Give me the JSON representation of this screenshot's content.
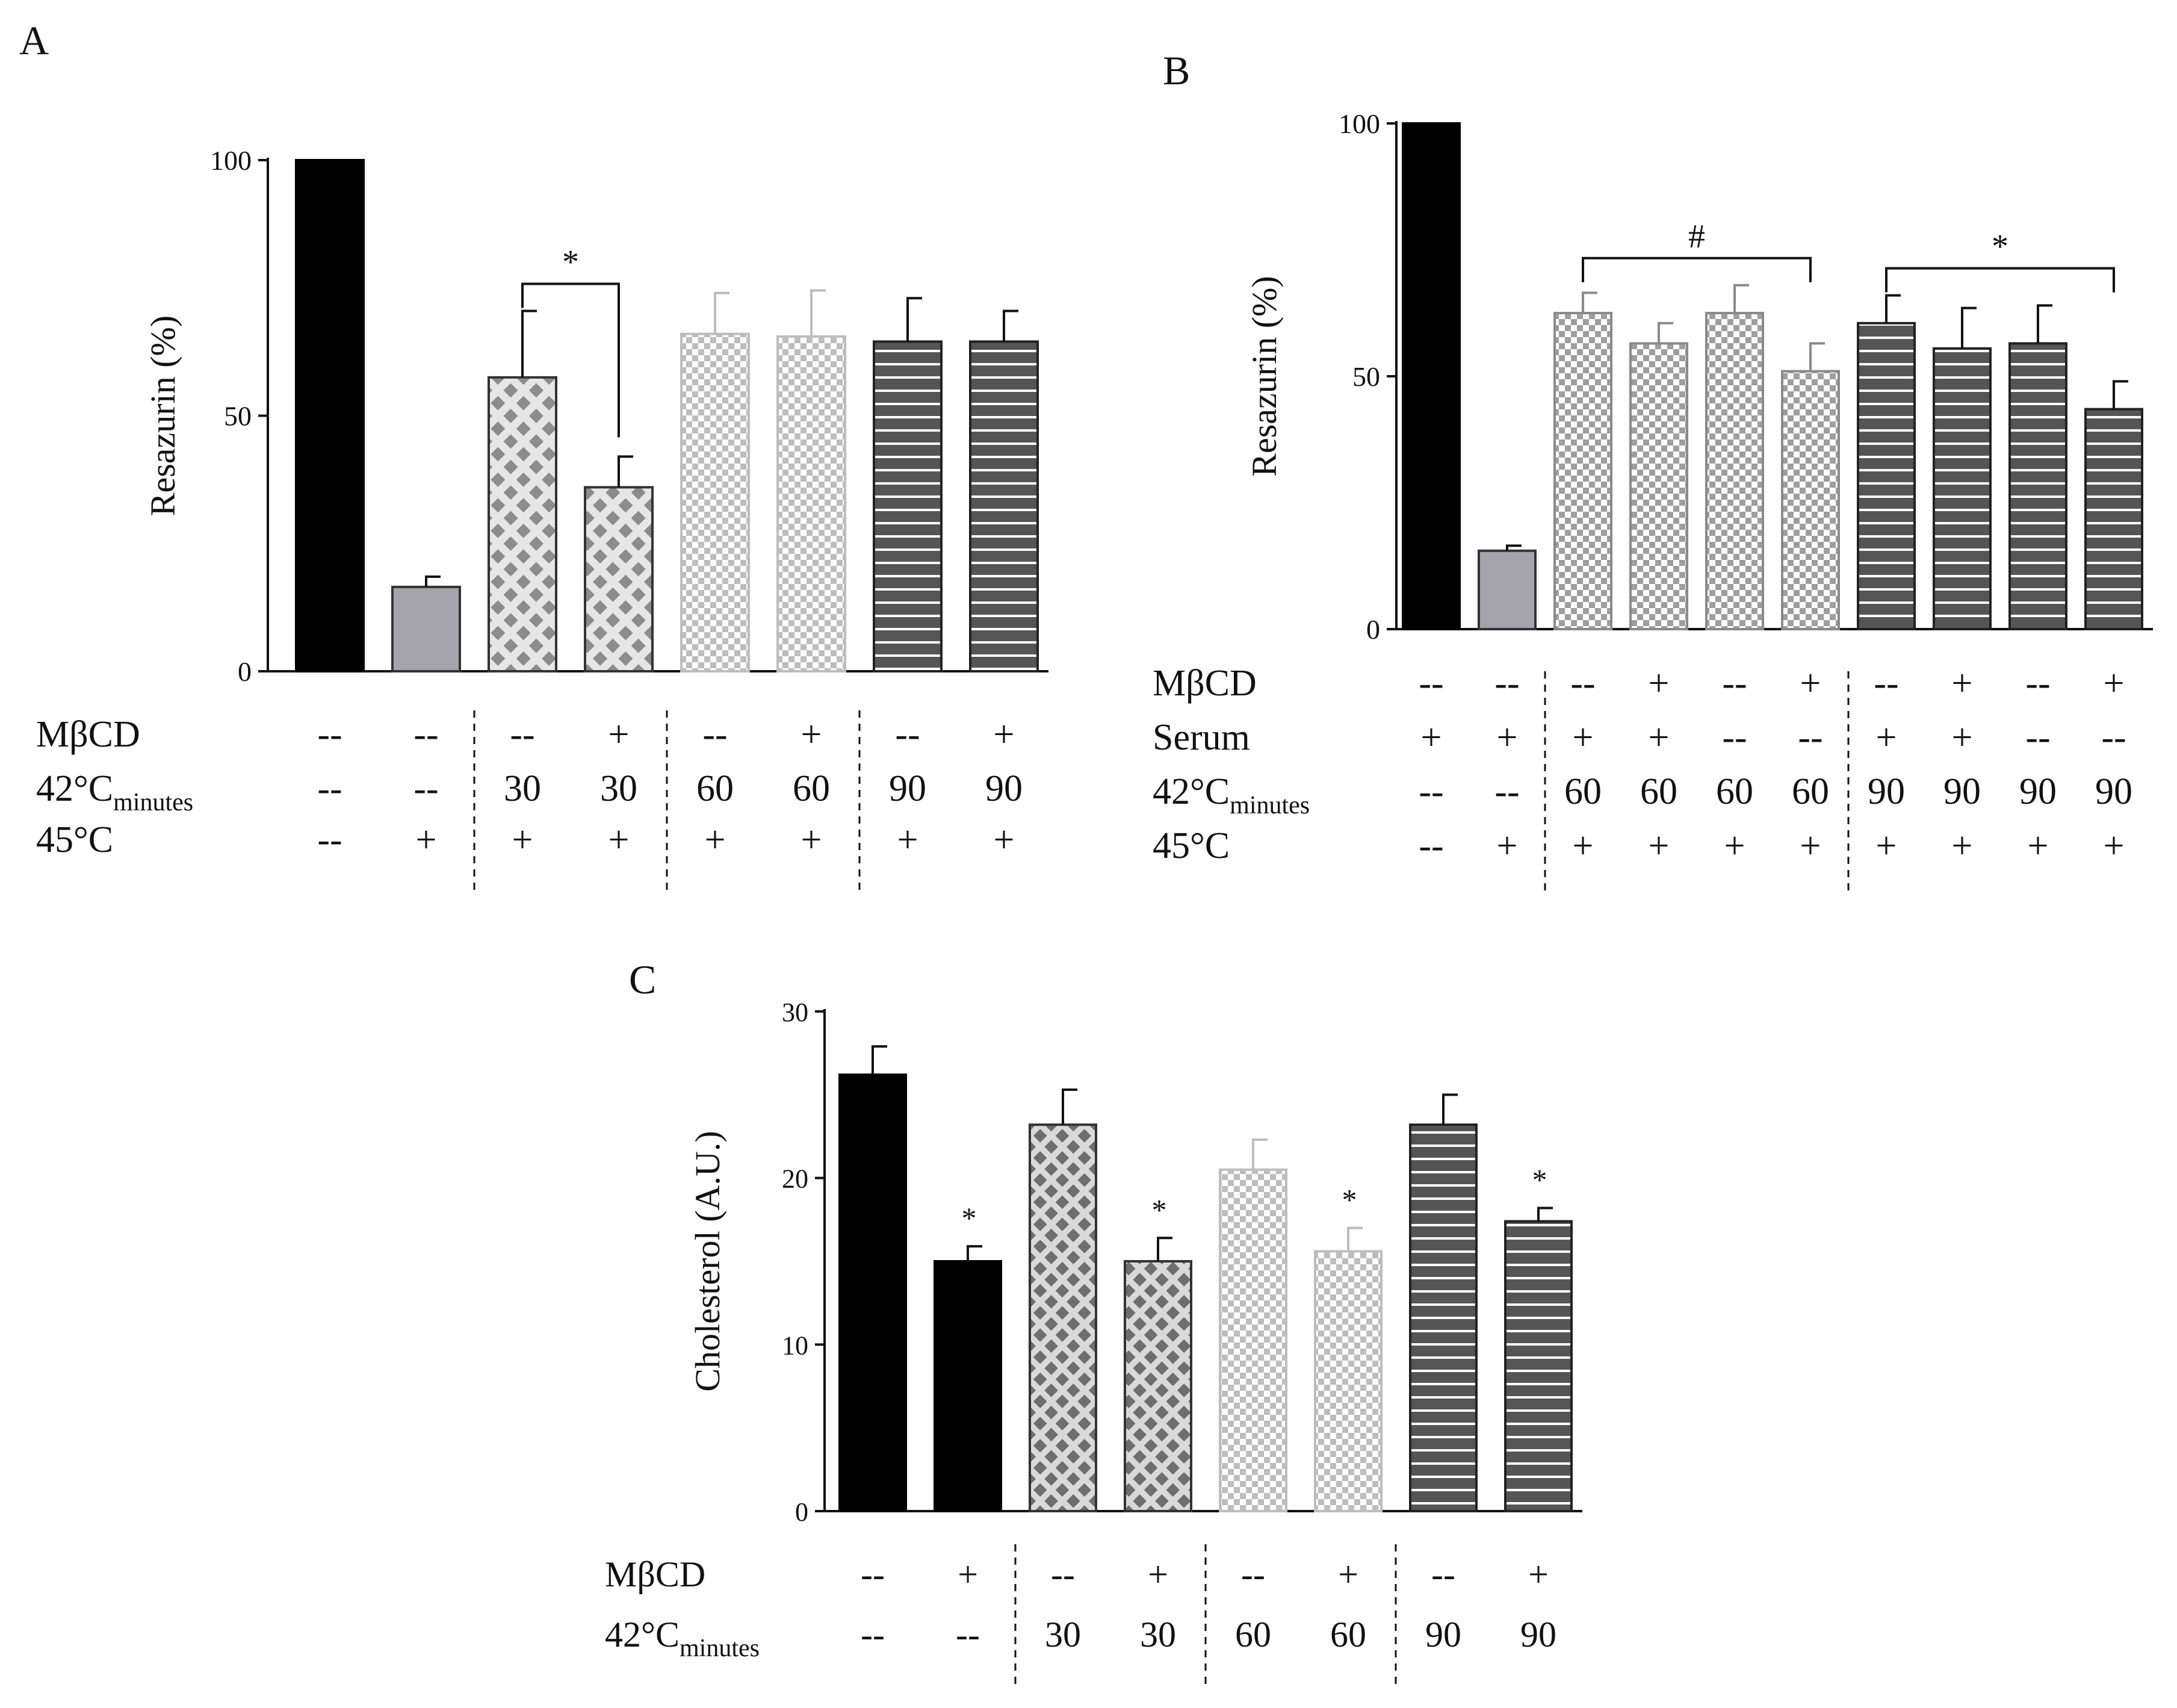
{
  "colors": {
    "black": "#000000",
    "gray_solid": "#a6a4ab",
    "crosshatch_fg": "#8c8c8c",
    "crosshatch_bg": "#e6e6e6",
    "check_light": "#bdbdbd",
    "check_mid": "#9e9e9e",
    "stripe_dark": "#555555",
    "stripe_line": "#ffffff"
  },
  "chart_data": [
    {
      "panel": "A",
      "type": "bar",
      "ylabel": "Resazurin (%)",
      "ylim": [
        0,
        100
      ],
      "yticks": [
        0,
        50,
        100
      ],
      "values": [
        100,
        16.5,
        57.5,
        36,
        66,
        65.5,
        64.5,
        64.5
      ],
      "errors": [
        0,
        2,
        13,
        6,
        8,
        9,
        8.5,
        6
      ],
      "patterns": [
        "black",
        "gray",
        "diamond",
        "diamond",
        "check-light",
        "check-light",
        "stripe-dark",
        "stripe-dark"
      ],
      "row_labels": [
        "MβCD",
        "42°C",
        "45°C"
      ],
      "row_label_subscripts": [
        "",
        "minutes",
        ""
      ],
      "rows": [
        [
          "--",
          "--",
          "--",
          "+",
          "--",
          "+",
          "--",
          "+"
        ],
        [
          "--",
          "--",
          "30",
          "30",
          "60",
          "60",
          "90",
          "90"
        ],
        [
          "--",
          "+",
          "+",
          "+",
          "+",
          "+",
          "+",
          "+"
        ]
      ],
      "group_separators_after": [
        1,
        3,
        5
      ],
      "brackets": [
        {
          "from": 2,
          "to": 3,
          "label": "*"
        }
      ],
      "bar_stars": []
    },
    {
      "panel": "B",
      "type": "bar",
      "ylabel": "Resazurin (%)",
      "ylim": [
        0,
        100
      ],
      "yticks": [
        0,
        50,
        100
      ],
      "values": [
        100,
        15.5,
        62.5,
        56.5,
        62.5,
        51,
        60.5,
        55.5,
        56.5,
        43.5
      ],
      "errors": [
        0,
        1,
        4,
        4,
        5.5,
        5.5,
        5.5,
        8,
        7.5,
        5.5
      ],
      "patterns": [
        "black",
        "gray",
        "check-mid",
        "check-mid",
        "check-mid",
        "check-mid",
        "stripe-dark",
        "stripe-dark",
        "stripe-dark",
        "stripe-dark"
      ],
      "row_labels": [
        "MβCD",
        "Serum",
        "42°C",
        "45°C"
      ],
      "row_label_subscripts": [
        "",
        "",
        "minutes",
        ""
      ],
      "rows": [
        [
          "--",
          "--",
          "--",
          "+",
          "--",
          "+",
          "--",
          "+",
          "--",
          "+"
        ],
        [
          "+",
          "+",
          "+",
          "+",
          "--",
          "--",
          "+",
          "+",
          "--",
          "--"
        ],
        [
          "--",
          "--",
          "60",
          "60",
          "60",
          "60",
          "90",
          "90",
          "90",
          "90"
        ],
        [
          "--",
          "+",
          "+",
          "+",
          "+",
          "+",
          "+",
          "+",
          "+",
          "+"
        ]
      ],
      "group_separators_after": [
        1,
        5
      ],
      "brackets": [
        {
          "from": 2,
          "to": 5,
          "label": "#"
        },
        {
          "from": 6,
          "to": 9,
          "label": "*"
        }
      ],
      "bar_stars": []
    },
    {
      "panel": "C",
      "type": "bar",
      "ylabel": "Cholesterol (A.U.)",
      "ylim": [
        0,
        30
      ],
      "yticks": [
        0,
        10,
        20,
        30
      ],
      "values": [
        26.2,
        15,
        23.2,
        15,
        20.5,
        15.6,
        23.2,
        17.4
      ],
      "errors": [
        1.7,
        0.9,
        2.1,
        1.4,
        1.8,
        1.4,
        1.8,
        0.8
      ],
      "patterns": [
        "black",
        "black",
        "diamond-dark",
        "diamond-dark",
        "check-light",
        "check-light",
        "stripe-dark",
        "stripe-dark"
      ],
      "row_labels": [
        "MβCD",
        "42°C"
      ],
      "row_label_subscripts": [
        "",
        "minutes"
      ],
      "rows": [
        [
          "--",
          "+",
          "--",
          "+",
          "--",
          "+",
          "--",
          "+"
        ],
        [
          "--",
          "--",
          "30",
          "30",
          "60",
          "60",
          "90",
          "90"
        ]
      ],
      "group_separators_after": [
        1,
        3,
        5
      ],
      "brackets": [],
      "bar_stars": [
        1,
        3,
        5,
        7
      ],
      "star_label": "*"
    }
  ]
}
